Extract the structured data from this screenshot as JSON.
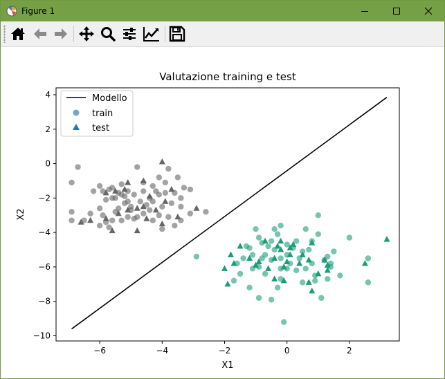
{
  "window": {
    "title": "Figure 1"
  },
  "toolbar": {
    "buttons": [
      {
        "name": "home-button",
        "icon": "home-icon"
      },
      {
        "name": "back-button",
        "icon": "arrow-left-icon"
      },
      {
        "name": "forward-button",
        "icon": "arrow-right-icon"
      },
      {
        "name": "pan-button",
        "icon": "move-icon"
      },
      {
        "name": "zoom-button",
        "icon": "magnifier-icon"
      },
      {
        "name": "subplots-button",
        "icon": "sliders-icon"
      },
      {
        "name": "axes-edit-button",
        "icon": "line-chart-icon"
      },
      {
        "name": "save-button",
        "icon": "floppy-disk-icon"
      }
    ]
  },
  "chart_data": {
    "type": "scatter",
    "title": "Valutazione training e test",
    "xlabel": "X1",
    "ylabel": "X2",
    "xlim": [
      -7.4,
      3.6
    ],
    "ylim": [
      -10.3,
      4.4
    ],
    "xticks": [
      -6,
      -4,
      -2,
      0,
      2
    ],
    "yticks": [
      4,
      2,
      0,
      -2,
      -4,
      -6,
      -8,
      -10
    ],
    "xtick_labels": [
      "−6",
      "−4",
      "−2",
      "0",
      "2"
    ],
    "ytick_labels": [
      "4",
      "2",
      "0",
      "−2",
      "−4",
      "−6",
      "−8",
      "−10"
    ],
    "grid": false,
    "legend": {
      "position": "top-left",
      "entries": [
        {
          "label": "Modello",
          "marker": "line",
          "color": "#000000"
        },
        {
          "label": "train",
          "marker": "circle",
          "color": "#4a86c0"
        },
        {
          "label": "test",
          "marker": "triangle",
          "color": "#1f77b4"
        }
      ]
    },
    "colors": {
      "class0": "#666666",
      "class1": "#1b9e77",
      "model": "#000000"
    },
    "model_line": {
      "x": [
        -6.9,
        3.2
      ],
      "y": [
        -9.6,
        3.85
      ]
    },
    "series": [
      {
        "name": "train",
        "marker": "circle",
        "class0": [
          [
            -6.7,
            -0.2
          ],
          [
            -6.9,
            -1.1
          ],
          [
            -6.0,
            -1.3
          ],
          [
            -6.2,
            -1.6
          ],
          [
            -5.9,
            -1.6
          ],
          [
            -5.6,
            -1.4
          ],
          [
            -5.3,
            -1.2
          ],
          [
            -5.1,
            -1.6
          ],
          [
            -4.8,
            -0.2
          ],
          [
            -4.6,
            -1.1
          ],
          [
            -4.3,
            -1.3
          ],
          [
            -4.1,
            -0.8
          ],
          [
            -3.9,
            -1.1
          ],
          [
            -3.8,
            -0.3
          ],
          [
            -3.3,
            -1.4
          ],
          [
            -3.1,
            -1.5
          ],
          [
            -3.4,
            -2.0
          ],
          [
            -3.6,
            -1.7
          ],
          [
            -3.9,
            -1.7
          ],
          [
            -4.1,
            -1.8
          ],
          [
            -4.4,
            -2.0
          ],
          [
            -4.6,
            -1.6
          ],
          [
            -4.9,
            -1.8
          ],
          [
            -5.1,
            -2.2
          ],
          [
            -5.4,
            -1.7
          ],
          [
            -5.6,
            -2.0
          ],
          [
            -5.8,
            -2.1
          ],
          [
            -6.0,
            -2.6
          ],
          [
            -6.3,
            -2.9
          ],
          [
            -6.9,
            -2.8
          ],
          [
            -6.9,
            -3.3
          ],
          [
            -6.5,
            -3.3
          ],
          [
            -6.0,
            -3.6
          ],
          [
            -5.8,
            -3.4
          ],
          [
            -5.6,
            -3.3
          ],
          [
            -5.4,
            -2.6
          ],
          [
            -5.2,
            -2.3
          ],
          [
            -5.0,
            -2.5
          ],
          [
            -4.7,
            -2.2
          ],
          [
            -4.5,
            -2.4
          ],
          [
            -4.3,
            -2.2
          ],
          [
            -4.0,
            -2.5
          ],
          [
            -3.7,
            -2.3
          ],
          [
            -3.4,
            -2.5
          ],
          [
            -3.1,
            -2.9
          ],
          [
            -2.6,
            -2.8
          ],
          [
            -3.4,
            -3.3
          ],
          [
            -3.6,
            -3.6
          ],
          [
            -4.1,
            -3.0
          ],
          [
            -4.3,
            -3.3
          ],
          [
            -4.6,
            -2.9
          ],
          [
            -4.9,
            -3.2
          ],
          [
            -5.1,
            -3.1
          ],
          [
            -5.5,
            -2.8
          ],
          [
            -5.7,
            -3.7
          ],
          [
            -5.3,
            -3.3
          ],
          [
            -5.0,
            -2.7
          ],
          [
            -4.8,
            -3.1
          ],
          [
            -4.0,
            -3.8
          ],
          [
            -3.8,
            -3.1
          ],
          [
            -5.5,
            -2.0
          ],
          [
            -5.7,
            -1.5
          ],
          [
            -5.3,
            -1.8
          ],
          [
            -4.2,
            -1.6
          ],
          [
            -3.5,
            -0.8
          ],
          [
            -5.9,
            -3.0
          ],
          [
            -5.2,
            -1.9
          ],
          [
            -4.4,
            -2.7
          ]
        ],
        "class1": [
          [
            -2.9,
            -5.4
          ],
          [
            -1.0,
            -3.8
          ],
          [
            -0.9,
            -4.3
          ],
          [
            -0.4,
            -3.8
          ],
          [
            -0.2,
            -3.6
          ],
          [
            -0.5,
            -4.5
          ],
          [
            -0.8,
            -4.6
          ],
          [
            -1.2,
            -4.9
          ],
          [
            -1.4,
            -5.5
          ],
          [
            -1.6,
            -5.8
          ],
          [
            -1.1,
            -6.1
          ],
          [
            -0.9,
            -6.0
          ],
          [
            -0.7,
            -5.3
          ],
          [
            -0.4,
            -5.0
          ],
          [
            -0.2,
            -5.5
          ],
          [
            0.0,
            -4.7
          ],
          [
            0.2,
            -4.9
          ],
          [
            0.4,
            -5.5
          ],
          [
            0.6,
            -3.8
          ],
          [
            0.8,
            -4.5
          ],
          [
            1.0,
            -4.1
          ],
          [
            1.0,
            -3.0
          ],
          [
            0.7,
            -5.0
          ],
          [
            1.2,
            -5.6
          ],
          [
            1.4,
            -6.0
          ],
          [
            1.5,
            -5.1
          ],
          [
            1.7,
            -6.5
          ],
          [
            2.0,
            -4.3
          ],
          [
            2.6,
            -5.5
          ],
          [
            2.6,
            -6.9
          ],
          [
            1.1,
            -7.8
          ],
          [
            0.9,
            -6.5
          ],
          [
            0.6,
            -6.1
          ],
          [
            0.3,
            -6.2
          ],
          [
            0.0,
            -6.1
          ],
          [
            -0.2,
            -6.7
          ],
          [
            -0.3,
            -7.2
          ],
          [
            -0.5,
            -7.9
          ],
          [
            -0.9,
            -7.8
          ],
          [
            -1.2,
            -7.2
          ],
          [
            -1.5,
            -6.4
          ],
          [
            -1.7,
            -6.8
          ],
          [
            -0.7,
            -6.4
          ],
          [
            -0.1,
            -9.2
          ],
          [
            0.5,
            -6.9
          ],
          [
            1.3,
            -6.7
          ],
          [
            1.4,
            -5.8
          ],
          [
            0.8,
            -5.8
          ],
          [
            0.5,
            -5.1
          ],
          [
            0.1,
            -5.8
          ],
          [
            -0.2,
            -6.1
          ],
          [
            -0.5,
            -5.6
          ],
          [
            -0.8,
            -5.5
          ],
          [
            -1.1,
            -5.3
          ],
          [
            -1.3,
            -4.8
          ],
          [
            -0.6,
            -4.8
          ],
          [
            0.0,
            -5.3
          ],
          [
            0.3,
            -4.5
          ],
          [
            -0.3,
            -4.1
          ],
          [
            1.3,
            -5.4
          ],
          [
            0.9,
            -6.8
          ]
        ]
      },
      {
        "name": "test",
        "marker": "triangle",
        "class0": [
          [
            -4.0,
            0.1
          ],
          [
            -4.6,
            -1.0
          ],
          [
            -5.2,
            -1.5
          ],
          [
            -5.5,
            -1.6
          ],
          [
            -4.4,
            -1.9
          ],
          [
            -3.7,
            -1.5
          ],
          [
            -5.8,
            -1.7
          ],
          [
            -6.6,
            -3.4
          ],
          [
            -6.3,
            -3.3
          ],
          [
            -5.1,
            -2.7
          ],
          [
            -4.5,
            -3.2
          ],
          [
            -4.8,
            -2.6
          ],
          [
            -4.2,
            -2.7
          ],
          [
            -3.5,
            -3.1
          ],
          [
            -3.9,
            -2.2
          ],
          [
            -5.8,
            -3.2
          ],
          [
            -5.6,
            -3.9
          ],
          [
            -4.8,
            -3.9
          ],
          [
            -5.4,
            -2.9
          ],
          [
            -4.0,
            -3.5
          ],
          [
            -2.9,
            -2.6
          ],
          [
            -5.1,
            -1.1
          ],
          [
            -4.6,
            -2.5
          ]
        ],
        "class1": [
          [
            -1.8,
            -5.3
          ],
          [
            -2.0,
            -6.1
          ],
          [
            -1.9,
            -7.0
          ],
          [
            -1.7,
            -5.8
          ],
          [
            -1.5,
            -4.8
          ],
          [
            -1.2,
            -5.5
          ],
          [
            -1.0,
            -5.9
          ],
          [
            -0.9,
            -5.7
          ],
          [
            -0.7,
            -4.5
          ],
          [
            -0.6,
            -6.1
          ],
          [
            -0.4,
            -5.5
          ],
          [
            -0.3,
            -4.8
          ],
          [
            -0.2,
            -5.0
          ],
          [
            -0.1,
            -6.0
          ],
          [
            -0.1,
            -6.8
          ],
          [
            0.0,
            -5.7
          ],
          [
            0.1,
            -5.3
          ],
          [
            0.1,
            -4.9
          ],
          [
            0.2,
            -4.7
          ],
          [
            0.4,
            -5.8
          ],
          [
            0.5,
            -5.3
          ],
          [
            0.7,
            -5.6
          ],
          [
            0.7,
            -6.9
          ],
          [
            0.8,
            -7.4
          ],
          [
            1.0,
            -6.4
          ],
          [
            1.2,
            -5.6
          ],
          [
            1.3,
            -5.9
          ],
          [
            1.3,
            -6.2
          ],
          [
            2.5,
            -5.8
          ],
          [
            3.2,
            -4.4
          ],
          [
            -0.2,
            -4.5
          ],
          [
            -0.4,
            -6.7
          ],
          [
            0.8,
            -4.6
          ]
        ]
      }
    ]
  }
}
